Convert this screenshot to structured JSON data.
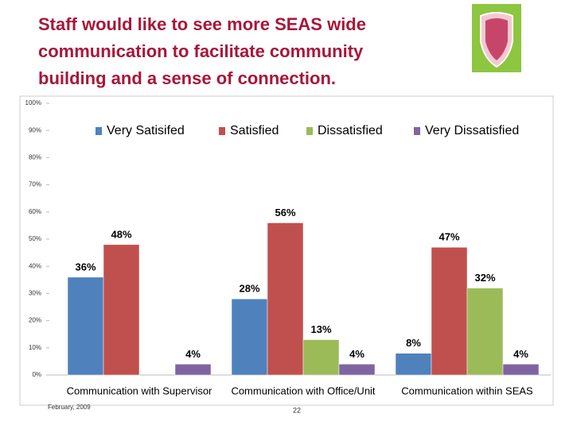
{
  "slide": {
    "title_lines": [
      "Staff would like to see more SEAS wide",
      "communication to facilitate community",
      "building and a sense of connection."
    ],
    "footer_date": "February, 2009",
    "page_number": "22"
  },
  "chart_data": {
    "type": "bar",
    "categories": [
      "Communication with Supervisor",
      "Communication with Office/Unit",
      "Communication within SEAS"
    ],
    "series": [
      {
        "name": "Very Satisifed",
        "color": "#4f81bd",
        "values": [
          36,
          28,
          8
        ],
        "value_labels": [
          "36%",
          "28%",
          "8%"
        ]
      },
      {
        "name": "Satisfied",
        "color": "#c0504d",
        "values": [
          48,
          56,
          47
        ],
        "value_labels": [
          "48%",
          "56%",
          "47%"
        ]
      },
      {
        "name": "Dissatisfied",
        "color": "#9bbb59",
        "values": [
          null,
          13,
          32
        ],
        "value_labels": [
          null,
          "13%",
          "32%"
        ]
      },
      {
        "name": "Very Dissatisfied",
        "color": "#8064a2",
        "values": [
          4,
          4,
          4
        ],
        "value_labels": [
          "4%",
          "4%",
          "4%"
        ]
      }
    ],
    "ylim": [
      0,
      100
    ],
    "yticks": [
      {
        "value": 0,
        "label": "0%"
      },
      {
        "value": 10,
        "label": "10%"
      },
      {
        "value": 20,
        "label": "20%"
      },
      {
        "value": 30,
        "label": "30%"
      },
      {
        "value": 40,
        "label": "40%"
      },
      {
        "value": 50,
        "label": "50%"
      },
      {
        "value": 60,
        "label": "60%"
      },
      {
        "value": 70,
        "label": "70%"
      },
      {
        "value": 80,
        "label": "80%"
      },
      {
        "value": 90,
        "label": "90%"
      },
      {
        "value": 100,
        "label": "100%"
      }
    ],
    "grid": false,
    "legend": "top"
  }
}
